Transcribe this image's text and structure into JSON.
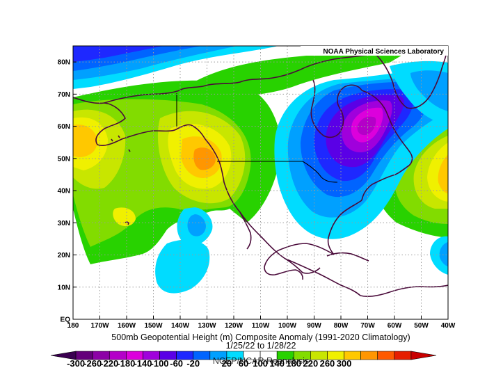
{
  "map": {
    "credit": "NOAA Physical Sciences Laboratory",
    "title": "500mb Geopotential Height (m) Composite Anomaly (1991-2020 Climatology)",
    "date_range": "1/25/22  to 1/28/22",
    "source": "NCEP/NCAR Reanalysis",
    "extent": {
      "lon_min": -180,
      "lon_max": -40,
      "lat_min": 0,
      "lat_max": 85
    },
    "lat_ticks": [
      {
        "value": 80,
        "label": "80N"
      },
      {
        "value": 70,
        "label": "70N"
      },
      {
        "value": 60,
        "label": "60N"
      },
      {
        "value": 50,
        "label": "50N"
      },
      {
        "value": 40,
        "label": "40N"
      },
      {
        "value": 30,
        "label": "30N"
      },
      {
        "value": 20,
        "label": "20N"
      },
      {
        "value": 10,
        "label": "10N"
      },
      {
        "value": 0,
        "label": "EQ"
      }
    ],
    "lon_ticks": [
      {
        "value": -180,
        "label": "180"
      },
      {
        "value": -170,
        "label": "170W"
      },
      {
        "value": -160,
        "label": "160W"
      },
      {
        "value": -150,
        "label": "150W"
      },
      {
        "value": -140,
        "label": "140W"
      },
      {
        "value": -130,
        "label": "130W"
      },
      {
        "value": -120,
        "label": "120W"
      },
      {
        "value": -110,
        "label": "110W"
      },
      {
        "value": -100,
        "label": "100W"
      },
      {
        "value": -90,
        "label": "90W"
      },
      {
        "value": -80,
        "label": "80W"
      },
      {
        "value": -70,
        "label": "70W"
      },
      {
        "value": -60,
        "label": "60W"
      },
      {
        "value": -50,
        "label": "50W"
      },
      {
        "value": -40,
        "label": "40W"
      }
    ],
    "grid": "dotted",
    "colorbar": {
      "labels": [
        "-300",
        "-260",
        "-220",
        "-180",
        "-140",
        "-100",
        "-60",
        "-20",
        "20",
        "60",
        "100",
        "140",
        "180",
        "220",
        "260",
        "300"
      ],
      "colors": [
        "#3a0050",
        "#64007a",
        "#8c00a6",
        "#b400c8",
        "#dc00dc",
        "#a000dc",
        "#5a00e6",
        "#1e28ff",
        "#0064ff",
        "#00a0ff",
        "#00dcff",
        "#ffffff",
        "#ffffff",
        "#28d200",
        "#82dc00",
        "#c8e600",
        "#f0f000",
        "#ffc800",
        "#ff9600",
        "#ff5a00",
        "#e61e00",
        "#c80000"
      ]
    }
  },
  "chart_data": {
    "type": "heatmap",
    "title": "500mb Geopotential Height (m) Composite Anomaly (1991-2020 Climatology)",
    "subtitle": "1/25/22  to 1/28/22",
    "xlabel": "",
    "ylabel": "",
    "xlim": [
      -180,
      -40
    ],
    "ylim": [
      0,
      85
    ],
    "units": "m",
    "anomaly_features": [
      {
        "name": "",
        "lon": -75,
        "lat": 58,
        "value": -220
      },
      {
        "name": "",
        "lon": -128,
        "lat": 48,
        "value": 160
      },
      {
        "name": "",
        "lon": -178,
        "lat": 55,
        "value": 140
      },
      {
        "name": "",
        "lon": -42,
        "lat": 44,
        "value": 140
      },
      {
        "name": "",
        "lon": -130,
        "lat": 32,
        "value": -60
      },
      {
        "name": "",
        "lon": -160,
        "lat": 78,
        "value": -120
      },
      {
        "name": "",
        "lon": -150,
        "lat": 41,
        "value": 60
      },
      {
        "name": "",
        "lon": -157,
        "lat": 31,
        "value": 100
      }
    ]
  }
}
